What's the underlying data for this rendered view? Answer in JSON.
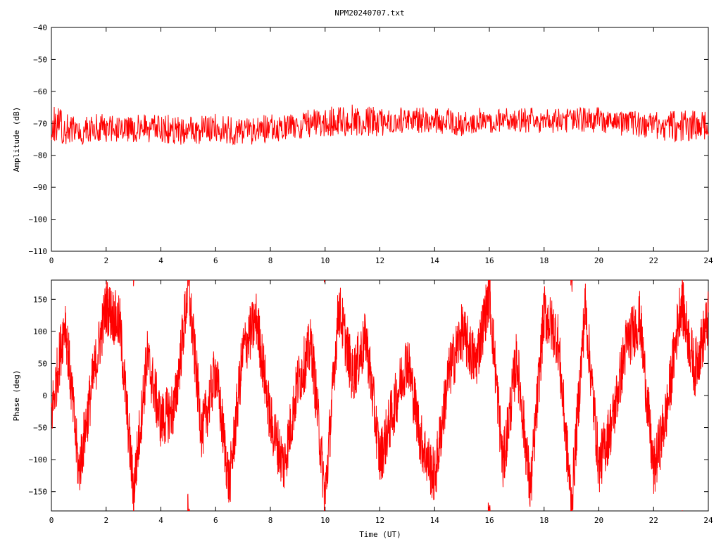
{
  "title": "NPM20240707.txt",
  "colors": {
    "series": "#ff0000",
    "axis": "#000000",
    "background": "#ffffff"
  },
  "chart_data": [
    {
      "type": "line",
      "ylabel": "Amplitude (dB)",
      "xlabel": "",
      "xlim": [
        0,
        24
      ],
      "ylim": [
        -110,
        -40
      ],
      "xticks": [
        "0",
        "2",
        "4",
        "6",
        "8",
        "10",
        "12",
        "14",
        "16",
        "18",
        "20",
        "22",
        "24"
      ],
      "yticks": [
        "-40",
        "-50",
        "-60",
        "-70",
        "-80",
        "-90",
        "-100",
        "-110"
      ],
      "grid": false,
      "series": [
        {
          "x": [
            0,
            1,
            2,
            3,
            4,
            5,
            6,
            7,
            8,
            9,
            10,
            11,
            12,
            13,
            14,
            15,
            16,
            17,
            18,
            19,
            20,
            21,
            22,
            23,
            24
          ],
          "y_center": [
            -71,
            -72,
            -71.5,
            -71.5,
            -72,
            -72.5,
            -72,
            -72,
            -71.5,
            -70.5,
            -70.5,
            -70,
            -69.5,
            -69.5,
            -69.5,
            -70,
            -69.5,
            -69.5,
            -69,
            -69,
            -69,
            -69.5,
            -70.5,
            -71,
            -71
          ],
          "y_min": [
            -76,
            -77,
            -76,
            -76,
            -76,
            -77,
            -76,
            -77,
            -76,
            -75,
            -74,
            -74,
            -74,
            -73,
            -73,
            -74,
            -73,
            -73,
            -73,
            -73,
            -73,
            -74,
            -75,
            -76,
            -75
          ],
          "y_max": [
            -64,
            -67,
            -67,
            -67,
            -67,
            -68,
            -67,
            -68,
            -67,
            -66,
            -65,
            -64,
            -65,
            -65,
            -65,
            -65,
            -65,
            -65,
            -65,
            -65,
            -65,
            -66,
            -66,
            -66,
            -66
          ]
        }
      ]
    },
    {
      "type": "line",
      "ylabel": "Phase (deg)",
      "xlabel": "Time (UT)",
      "xlim": [
        0,
        24
      ],
      "ylim": [
        -180,
        180
      ],
      "xticks": [
        "0",
        "2",
        "4",
        "6",
        "8",
        "10",
        "12",
        "14",
        "16",
        "18",
        "20",
        "22",
        "24"
      ],
      "yticks": [
        "150",
        "100",
        "50",
        "0",
        "-50",
        "-100",
        "-150"
      ],
      "grid": false,
      "series": [
        {
          "x": [
            0,
            0.5,
            1,
            1.5,
            2,
            2.5,
            3,
            3.5,
            4,
            4.5,
            5,
            5.5,
            6,
            6.5,
            7,
            7.5,
            8,
            8.5,
            9,
            9.5,
            10,
            10.5,
            11,
            11.5,
            12,
            12.5,
            13,
            13.5,
            14,
            14.5,
            15,
            15.5,
            16,
            16.5,
            17,
            17.5,
            18,
            18.5,
            19,
            19.5,
            20,
            20.5,
            21,
            21.5,
            22,
            22.5,
            23,
            23.5,
            24
          ],
          "y": [
            -30,
            120,
            -120,
            20,
            140,
            110,
            -150,
            60,
            -40,
            -20,
            170,
            -60,
            40,
            -140,
            70,
            120,
            -40,
            -110,
            20,
            80,
            -160,
            140,
            30,
            90,
            -100,
            -20,
            60,
            -70,
            -130,
            30,
            100,
            50,
            160,
            -110,
            60,
            -150,
            130,
            90,
            -170,
            140,
            -110,
            -40,
            80,
            120,
            -120,
            -20,
            150,
            40,
            120
          ]
        }
      ]
    }
  ]
}
